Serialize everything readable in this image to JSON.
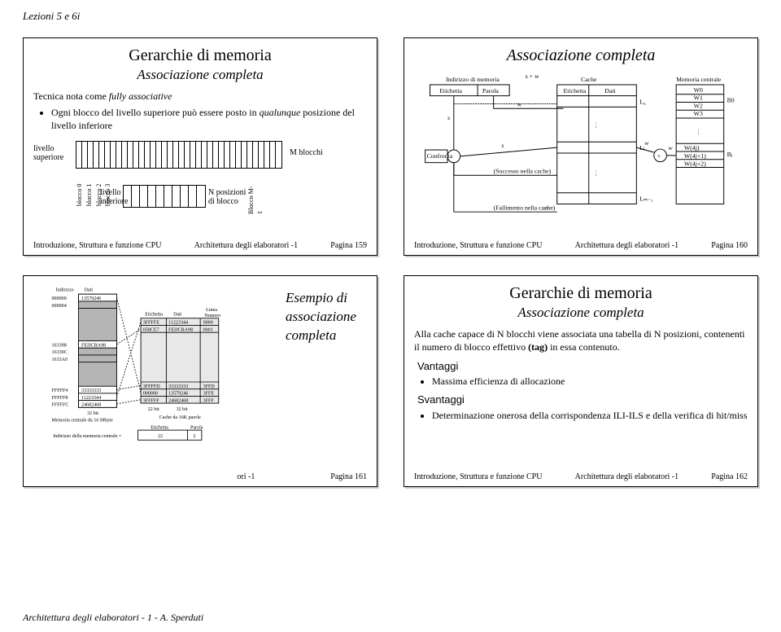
{
  "header": "Lezioni 5 e 6i",
  "page_footer": "Architettura degli elaboratori - 1 - A. Sperduti",
  "colors": {
    "bg": "#ffffff",
    "text": "#000000",
    "panel_border": "#000000",
    "gray_fill": "#b5b5b5",
    "light_fill": "#e8e8e8"
  },
  "common_footer": {
    "left": "Introduzione, Struttura e funzione CPU",
    "mid": "Architettura degli elaboratori -1"
  },
  "panel1": {
    "title": "Gerarchie di memoria",
    "subtitle": "Associazione completa",
    "line1_a": "Tecnica nota come ",
    "line1_b": "fully associative",
    "bullet1_a": "Ogni blocco del livello superiore può essere posto in ",
    "bullet1_b": "qualunque",
    "bullet1_c": " posizione del livello inferiore",
    "lbl_sup": "livello\nsuperiore",
    "lbl_inf": "livello\ninferiore",
    "lbl_M": "M blocchi",
    "lbl_Npos": "N posizioni\ndi blocco",
    "lbl_bloccoM1": "Blocco M-1",
    "blabels": [
      "blocco 0",
      "blocco 1",
      "blocco 2",
      "blocco 3"
    ],
    "page": "Pagina 159",
    "sup_cells": 36,
    "inf_cells": 10
  },
  "panel2": {
    "title": "Associazione completa",
    "page": "Pagina 160",
    "labels": {
      "indirizzo": "Indirizzo di memoria",
      "etichetta": "Etichetta",
      "parola": "Parola",
      "cache": "Cache",
      "dati": "Dati",
      "memcen": "Memoria centrale",
      "b0": "B0",
      "w0": "W0",
      "w1": "W1",
      "w2": "W2",
      "w3": "W3",
      "confronta": "Confronta",
      "succ": "(Successo nella cache)",
      "fall": "(Fallimento nella cache)",
      "l0": "L₀",
      "lj": "Lⱼ",
      "lm1": "Lₘ₋₁",
      "bj": "Bⱼ",
      "wrow": [
        "W(4j)",
        "W(4j+1)",
        "W(4j+2)",
        "W(4j+3)"
      ]
    }
  },
  "panel3": {
    "title": "Esempio di associazione completa",
    "page": "Pagina 161",
    "labels": {
      "indirizzo": "Indirizzo",
      "dati": "Dati",
      "addr1": "000000",
      "addr2": "000004",
      "data1": "13579246",
      "addrA": "163398",
      "addrB": "16339C",
      "addrC": "1633A0",
      "dataA": "FEDCBA98",
      "addrX": "FFFFF4",
      "addrY": "FFFFF8",
      "addrZ": "FFFFFC",
      "dataX": "33333333",
      "dataY": "11223344",
      "dataZ": "24682468",
      "bits32": "32 bit",
      "memcen": "Memoria centrale da 16 Mbyte",
      "etichetta": "Etichetta",
      "datiCol": "Dati",
      "linea": "Linea",
      "numero": "Numero",
      "row1a": "3FFFFE",
      "row1b": "11223344",
      "row1c": "0000",
      "row2a": "058CE7",
      "row2b": "FEDCBA98",
      "row2c": "0001",
      "row3a": "3FFFFD",
      "row3b": "33333333",
      "row3c": "3FFD",
      "row4a": "000000",
      "row4b": "13579246",
      "row4c": "3FFE",
      "row5a": "3FFFFF",
      "row5b": "24682468",
      "row5c": "3FFF",
      "bits22": "22 bit",
      "bits32b": "32 bit",
      "cache16k": "Cache da 16K parole",
      "indMem": "Indirizzo della memoria centrale =",
      "tag": "Etichetta",
      "tagBits": "22",
      "word": "Parola",
      "wordBits": "2"
    }
  },
  "panel4": {
    "title": "Gerarchie di memoria",
    "subtitle": "Associazione completa",
    "para_a": "Alla cache capace di N blocchi viene associata una tabella di N posizioni, contenenti il numero di blocco effettivo ",
    "para_b": "(tag)",
    "para_c": " in essa contenuto.",
    "vantaggi": "Vantaggi",
    "v1": "Massima efficienza di allocazione",
    "svantaggi": "Svantaggi",
    "s1": "Determinazione onerosa della corrispondenza ILI-ILS e della verifica di hit/miss",
    "page": "Pagina 162"
  }
}
